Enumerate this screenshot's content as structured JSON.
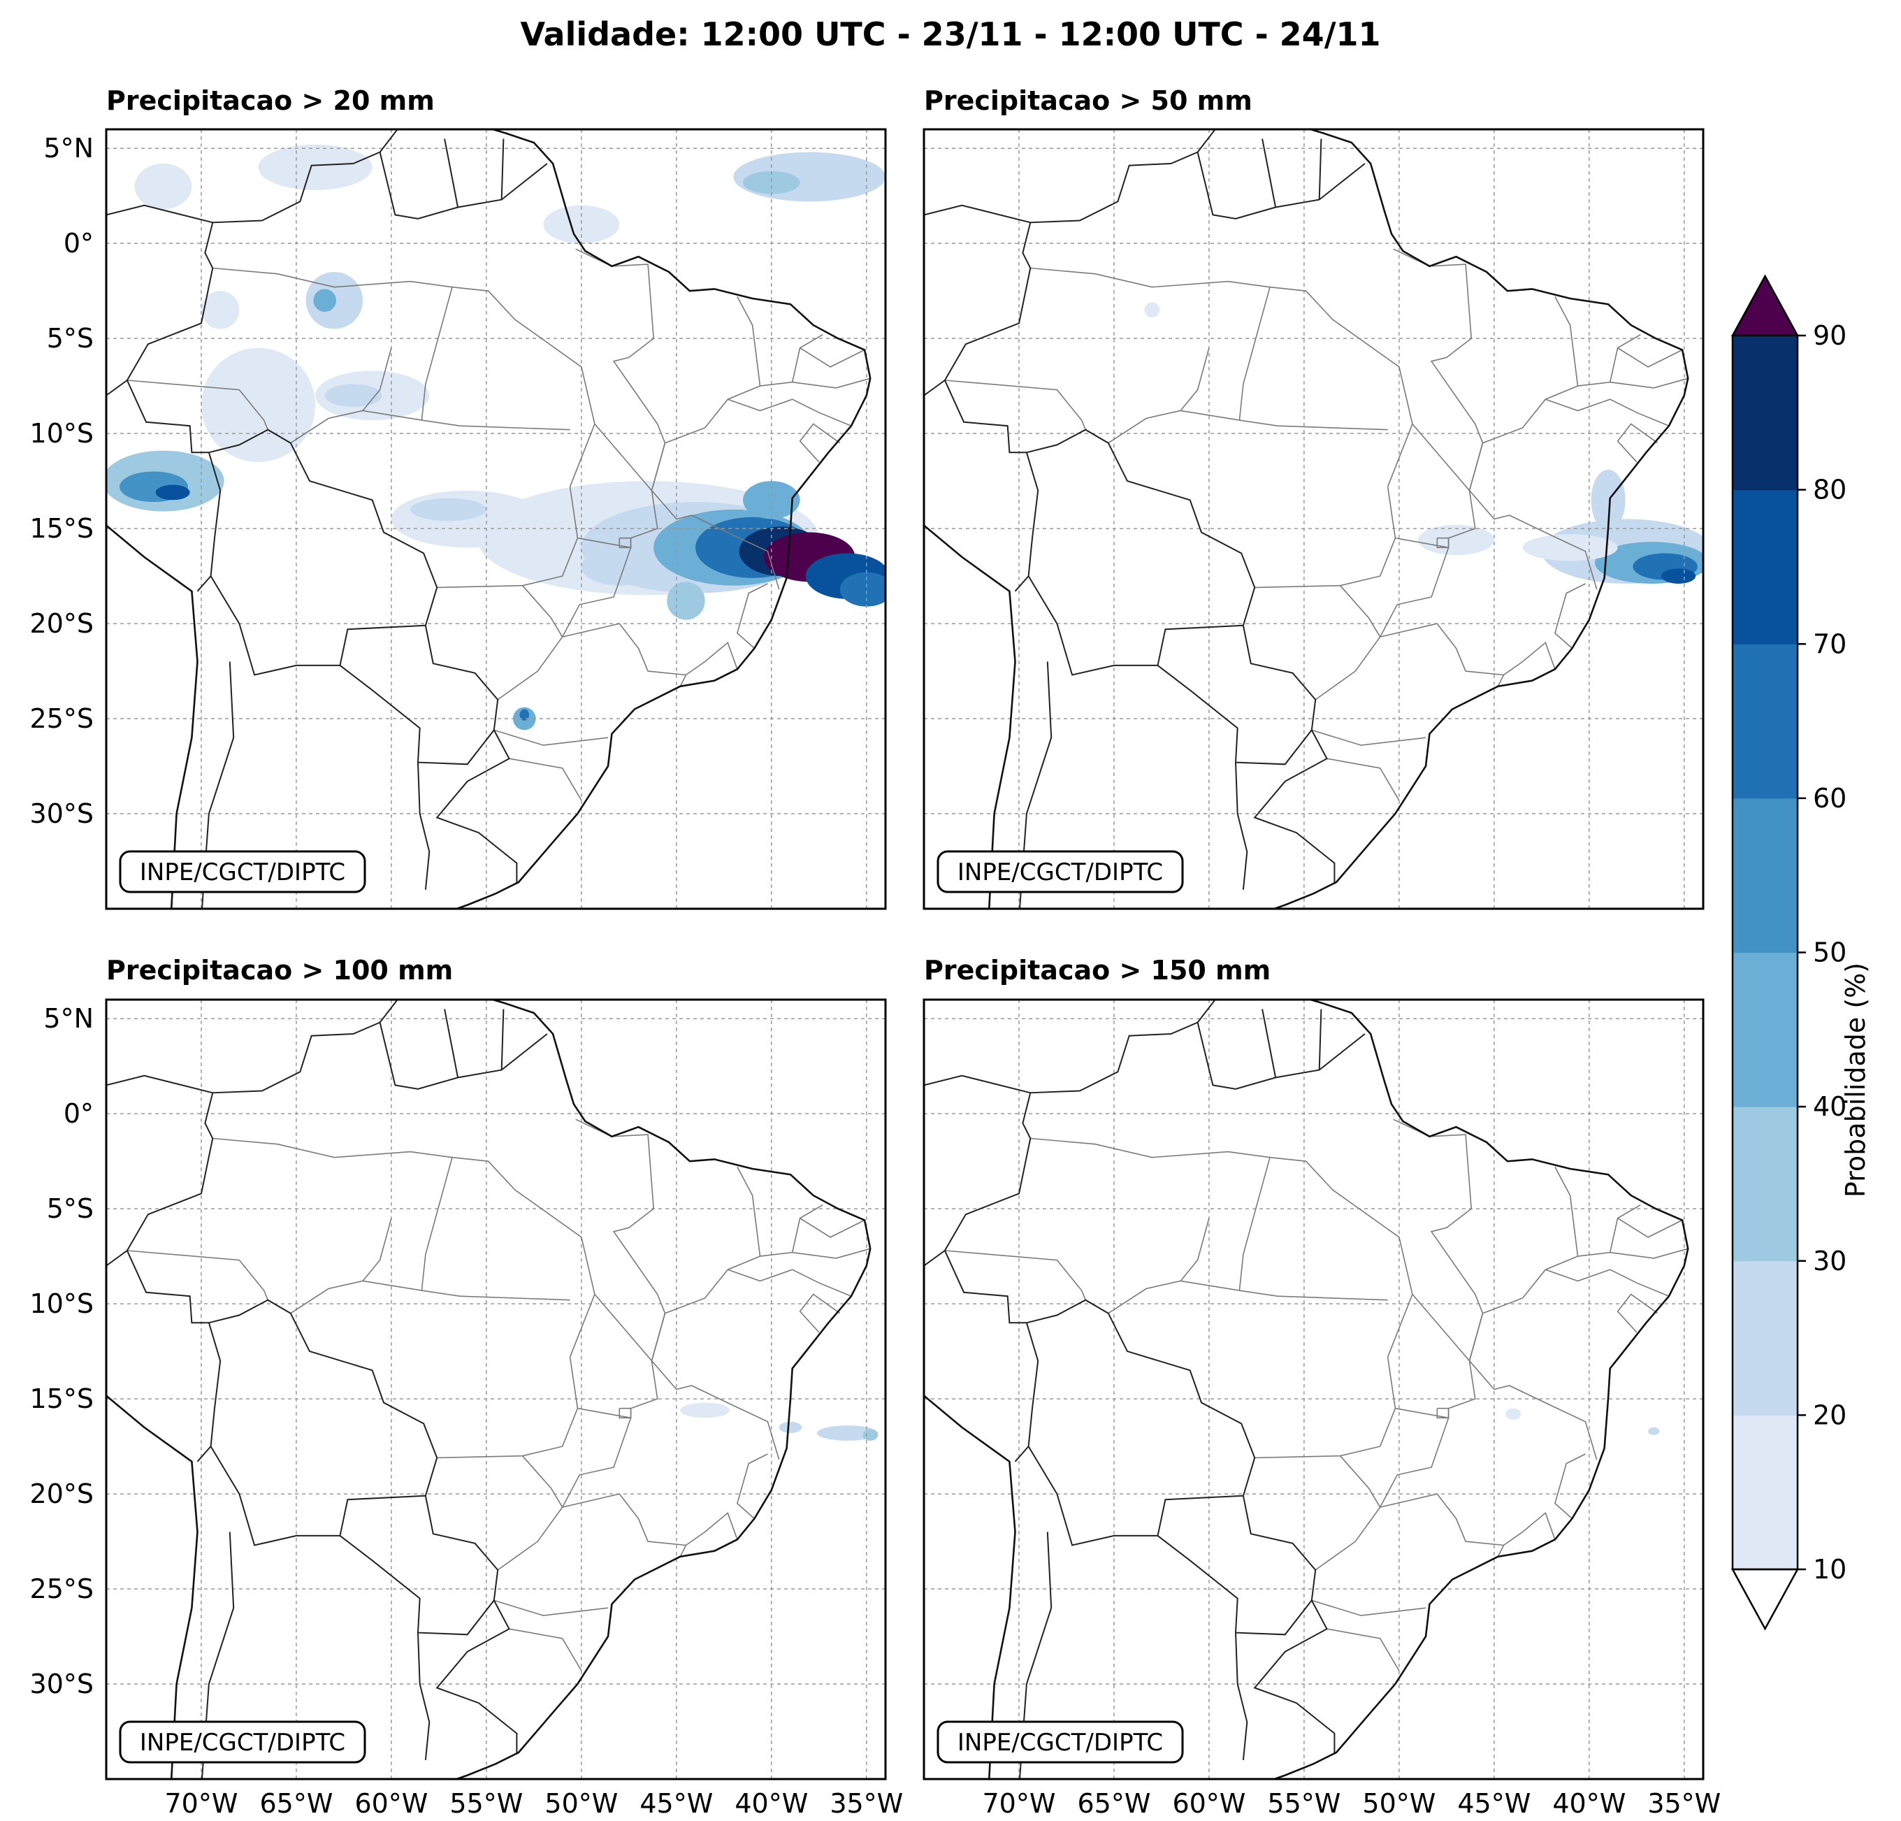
{
  "title": "Validade: 12:00 UTC - 23/11 - 12:00 UTC - 24/11",
  "panels": [
    {
      "id": "p20",
      "title": "Precipitacao > 20 mm"
    },
    {
      "id": "p50",
      "title": "Precipitacao > 50 mm"
    },
    {
      "id": "p100",
      "title": "Precipitacao > 100 mm"
    },
    {
      "id": "p150",
      "title": "Precipitacao > 150 mm"
    }
  ],
  "watermark": "INPE/CGCT/DIPTC",
  "lat_labels": [
    "5°N",
    "0°",
    "5°S",
    "10°S",
    "15°S",
    "20°S",
    "25°S",
    "30°S"
  ],
  "lon_labels": [
    "70°W",
    "65°W",
    "60°W",
    "55°W",
    "50°W",
    "45°W",
    "40°W",
    "35°W"
  ],
  "colorbar": {
    "label": "Probabilidade (%)",
    "ticks": [
      "10",
      "20",
      "30",
      "40",
      "50",
      "60",
      "70",
      "80",
      "90"
    ],
    "colors": [
      "#dfe9f5",
      "#c5d9ef",
      "#9ecae1",
      "#6baed6",
      "#4292c6",
      "#2171b5",
      "#08519c",
      "#08306b"
    ],
    "over_color": "#4d004b",
    "under_color": "#ffffff"
  }
}
